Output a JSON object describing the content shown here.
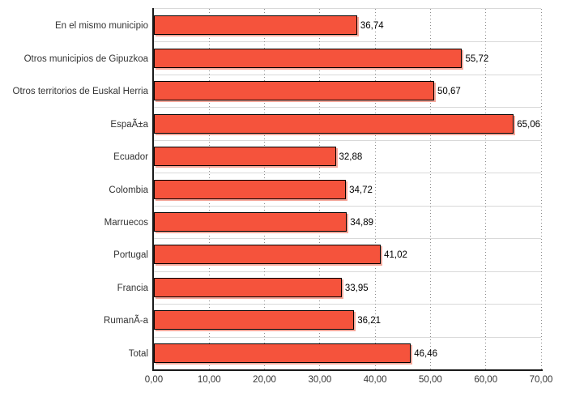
{
  "chart_data": {
    "type": "bar",
    "orientation": "horizontal",
    "title": "",
    "xlabel": "",
    "ylabel": "",
    "categories": [
      "En el mismo municipio",
      "Otros municipios de Gipuzkoa",
      "Otros territorios de Euskal Herria",
      "EspaÃ±a",
      "Ecuador",
      "Colombia",
      "Marruecos",
      "Portugal",
      "Francia",
      "RumanÃ-a",
      "Total"
    ],
    "values": [
      36.74,
      55.72,
      50.67,
      65.06,
      32.88,
      34.72,
      34.89,
      41.02,
      33.95,
      36.21,
      46.46
    ],
    "value_labels": [
      "36,74",
      "55,72",
      "50,67",
      "65,06",
      "32,88",
      "34,72",
      "34,89",
      "41,02",
      "33,95",
      "36,21",
      "46,46"
    ],
    "xlim": [
      0,
      70
    ],
    "x_ticks": [
      0,
      10,
      20,
      30,
      40,
      50,
      60,
      70
    ],
    "x_tick_labels": [
      "0,00",
      "10,00",
      "20,00",
      "30,00",
      "40,00",
      "50,00",
      "60,00",
      "70,00"
    ],
    "grid": "vertical-dashed",
    "legend": "none"
  },
  "colors": {
    "bar_fill": "#F5533C",
    "bar_border": "#000000",
    "bar_shadow": "#F5A89B",
    "gridline": "#8C8C8C",
    "band_line": "#D9D9D9",
    "axis_line": "#1A1A1A",
    "text": "#333333",
    "value_text": "#000000",
    "background": "#FFFFFF"
  }
}
